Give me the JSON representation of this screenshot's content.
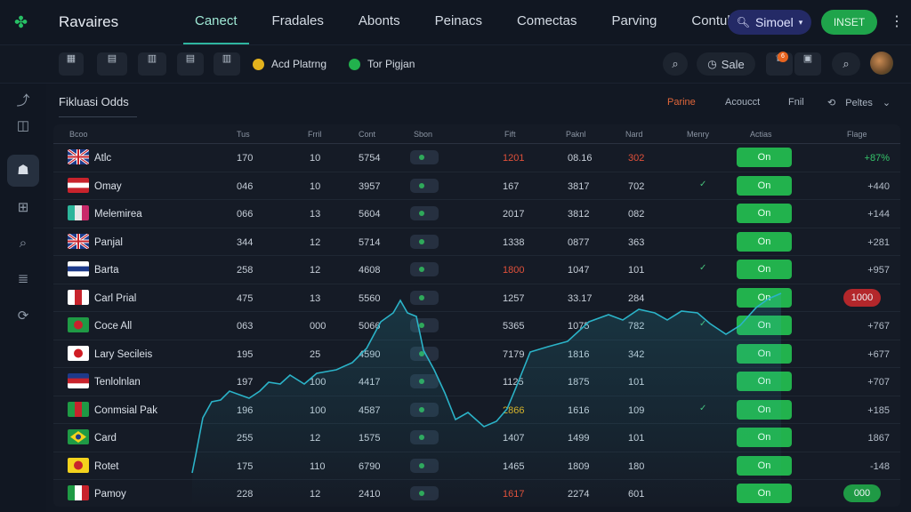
{
  "app": {
    "title": "Ravaires"
  },
  "nav": {
    "items": [
      "Canect",
      "Fradales",
      "Abonts",
      "Peinacs",
      "Comectas",
      "Parving",
      "Contulrits"
    ],
    "active_index": 0
  },
  "header": {
    "user_button": "Simoel",
    "action_button": "INSET"
  },
  "toolbar": {
    "pills": [
      {
        "label": "Acd Platrng",
        "color": "#e3b21d"
      },
      {
        "label": "Tor Pigjan",
        "color": "#22b24d"
      }
    ],
    "sale_label": "Sale",
    "notification_count": "6"
  },
  "main": {
    "title": "Fikluasi Odds",
    "filters": [
      "Parine",
      "Acoucct",
      "Fnil",
      "Peltes"
    ]
  },
  "table": {
    "headers": [
      "Bcoo",
      "Tus",
      "Frril",
      "Cont",
      "Sbon",
      "Fift",
      "Paknl",
      "Nard",
      "Menry",
      "Actias",
      "Flage"
    ],
    "rows": [
      {
        "team": "Atlc",
        "tus": "170",
        "frril": "10",
        "cont": "5754",
        "fift": "1201",
        "fift_color": "#e0503a",
        "paknl": "08.16",
        "nard": "302",
        "nard_color": "#e0503a",
        "check": "",
        "action": "On",
        "change": "+87%",
        "change_color": "#35c46a",
        "change_pill": ""
      },
      {
        "team": "Omay",
        "tus": "046",
        "frril": "10",
        "cont": "3957",
        "fift": "167",
        "fift_color": "",
        "paknl": "3817",
        "nard": "702",
        "nard_color": "",
        "check": "✓",
        "action": "On",
        "change": "+440",
        "change_color": "",
        "change_pill": ""
      },
      {
        "team": "Melemirea",
        "tus": "066",
        "frril": "13",
        "cont": "5604",
        "fift": "2017",
        "fift_color": "",
        "paknl": "3812",
        "nard": "082",
        "nard_color": "",
        "check": "",
        "action": "On",
        "change": "+144",
        "change_color": "",
        "change_pill": ""
      },
      {
        "team": "Panjal",
        "tus": "344",
        "frril": "12",
        "cont": "5714",
        "fift": "1338",
        "fift_color": "",
        "paknl": "0877",
        "nard": "363",
        "nard_color": "",
        "check": "",
        "action": "On",
        "change": "+281",
        "change_color": "",
        "change_pill": ""
      },
      {
        "team": "Barta",
        "tus": "258",
        "frril": "12",
        "cont": "4608",
        "fift": "1800",
        "fift_color": "#e0503a",
        "paknl": "1047",
        "nard": "101",
        "nard_color": "",
        "check": "✓",
        "action": "On",
        "change": "+957",
        "change_color": "",
        "change_pill": ""
      },
      {
        "team": "Carl Prial",
        "tus": "475",
        "frril": "13",
        "cont": "5560",
        "fift": "1257",
        "fift_color": "",
        "paknl": "33.17",
        "nard": "284",
        "nard_color": "",
        "check": "",
        "action": "On",
        "change": "1000",
        "change_color": "",
        "change_pill": "red"
      },
      {
        "team": "Coce All",
        "tus": "063",
        "frril": "000",
        "cont": "5066",
        "fift": "5365",
        "fift_color": "",
        "paknl": "1075",
        "nard": "782",
        "nard_color": "",
        "check": "✓",
        "action": "On",
        "change": "+767",
        "change_color": "",
        "change_pill": ""
      },
      {
        "team": "Lary Secileis",
        "tus": "195",
        "frril": "25",
        "cont": "4590",
        "fift": "7179",
        "fift_color": "",
        "paknl": "1816",
        "nard": "342",
        "nard_color": "",
        "check": "",
        "action": "On",
        "change": "+677",
        "change_color": "",
        "change_pill": ""
      },
      {
        "team": "Tenlolnlan",
        "tus": "197",
        "frril": "100",
        "cont": "4417",
        "fift": "1125",
        "fift_color": "",
        "paknl": "1875",
        "nard": "101",
        "nard_color": "",
        "check": "",
        "action": "On",
        "change": "+707",
        "change_color": "",
        "change_pill": ""
      },
      {
        "team": "Conmsial Pak",
        "tus": "196",
        "frril": "100",
        "cont": "4587",
        "fift": "2866",
        "fift_color": "#e3b21d",
        "paknl": "1616",
        "nard": "109",
        "nard_color": "",
        "check": "✓",
        "action": "On",
        "change": "+185",
        "change_color": "",
        "change_pill": ""
      },
      {
        "team": "Card",
        "tus": "255",
        "frril": "12",
        "cont": "1575",
        "fift": "1407",
        "fift_color": "",
        "paknl": "1499",
        "nard": "101",
        "nard_color": "",
        "check": "",
        "action": "On",
        "change": "1867",
        "change_color": "",
        "change_pill": ""
      },
      {
        "team": "Rotet",
        "tus": "175",
        "frril": "110",
        "cont": "6790",
        "fift": "1465",
        "fift_color": "",
        "paknl": "1809",
        "nard": "180",
        "nard_color": "",
        "check": "",
        "action": "On",
        "change": "-148",
        "change_color": "",
        "change_pill": ""
      },
      {
        "team": "Pamoy",
        "tus": "228",
        "frril": "12",
        "cont": "2410",
        "fift": "1617",
        "fift_color": "#e0503a",
        "paknl": "2274",
        "nard": "601",
        "nard_color": "",
        "check": "",
        "action": "On",
        "change": "000",
        "change_color": "",
        "change_pill": "green"
      }
    ],
    "flags": [
      {
        "colors": [
          "#1d3a8a",
          "#ffffff",
          "#c8232c"
        ],
        "style": "uk"
      },
      {
        "colors": [
          "#c8232c",
          "#ffffff",
          "#c8232c"
        ],
        "style": "h"
      },
      {
        "colors": [
          "#2cb59a",
          "#e7e7e7",
          "#c82a6a"
        ],
        "style": "v"
      },
      {
        "colors": [
          "#1d3a8a",
          "#ffffff",
          "#c8232c"
        ],
        "style": "uk"
      },
      {
        "colors": [
          "#ffffff",
          "#1d3a8a",
          "#ffffff"
        ],
        "style": "h"
      },
      {
        "colors": [
          "#ffffff",
          "#c8232c",
          "#ffffff"
        ],
        "style": "v"
      },
      {
        "colors": [
          "#1f9a45",
          "#c8232c",
          "#1f9a45"
        ],
        "style": "circle"
      },
      {
        "colors": [
          "#ffffff",
          "#d01c24",
          "#ffffff"
        ],
        "style": "circle"
      },
      {
        "colors": [
          "#1d3a8a",
          "#c8232c",
          "#ffffff"
        ],
        "style": "h"
      },
      {
        "colors": [
          "#1f9a45",
          "#c8232c",
          "#1f9a45"
        ],
        "style": "v"
      },
      {
        "colors": [
          "#1f9a45",
          "#f3d21d",
          "#1f9a45"
        ],
        "style": "diamond"
      },
      {
        "colors": [
          "#f3d21d",
          "#c8232c",
          "#f3d21d"
        ],
        "style": "circle"
      },
      {
        "colors": [
          "#1f9a45",
          "#ffffff",
          "#c8232c"
        ],
        "style": "v"
      }
    ]
  },
  "colors": {
    "accent": "#22b24d",
    "line": "#2bb3c8",
    "brand": "#27c065"
  }
}
